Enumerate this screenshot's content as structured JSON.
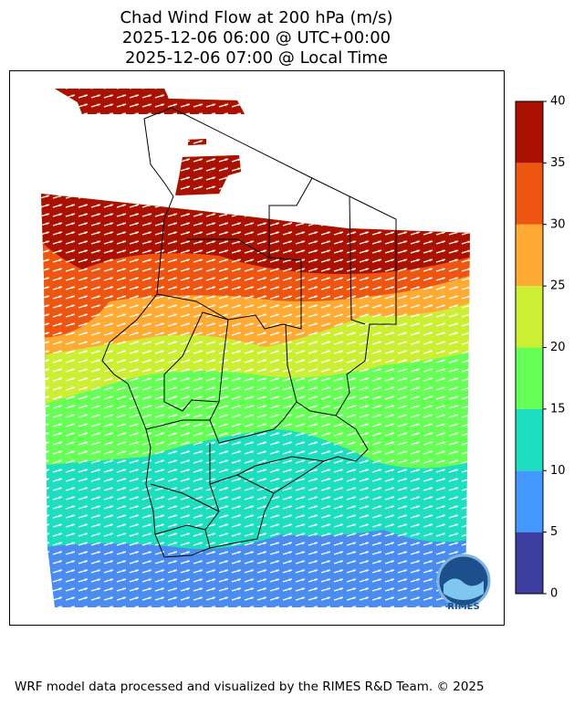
{
  "header": {
    "title_lines": [
      "Chad Wind Flow at 200 hPa (m/s)",
      "2025-12-06 06:00 @ UTC+00:00",
      "2025-12-06 07:00 @ Local Time"
    ]
  },
  "colorbar": {
    "levels": [
      0,
      5,
      10,
      15,
      20,
      25,
      30,
      35,
      40
    ],
    "colors": [
      "#3d3d9f",
      "#4499ff",
      "#1ddfc0",
      "#66ff55",
      "#ccee33",
      "#ffaa33",
      "#ee5511",
      "#aa1100"
    ],
    "lim": [
      0,
      40
    ],
    "ticks": [
      0,
      5,
      10,
      15,
      20,
      25,
      30,
      35,
      40
    ]
  },
  "logo_text": "RIMES",
  "footer": "WRF model data processed and visualized by the RIMES R&D Team. © 2025"
}
